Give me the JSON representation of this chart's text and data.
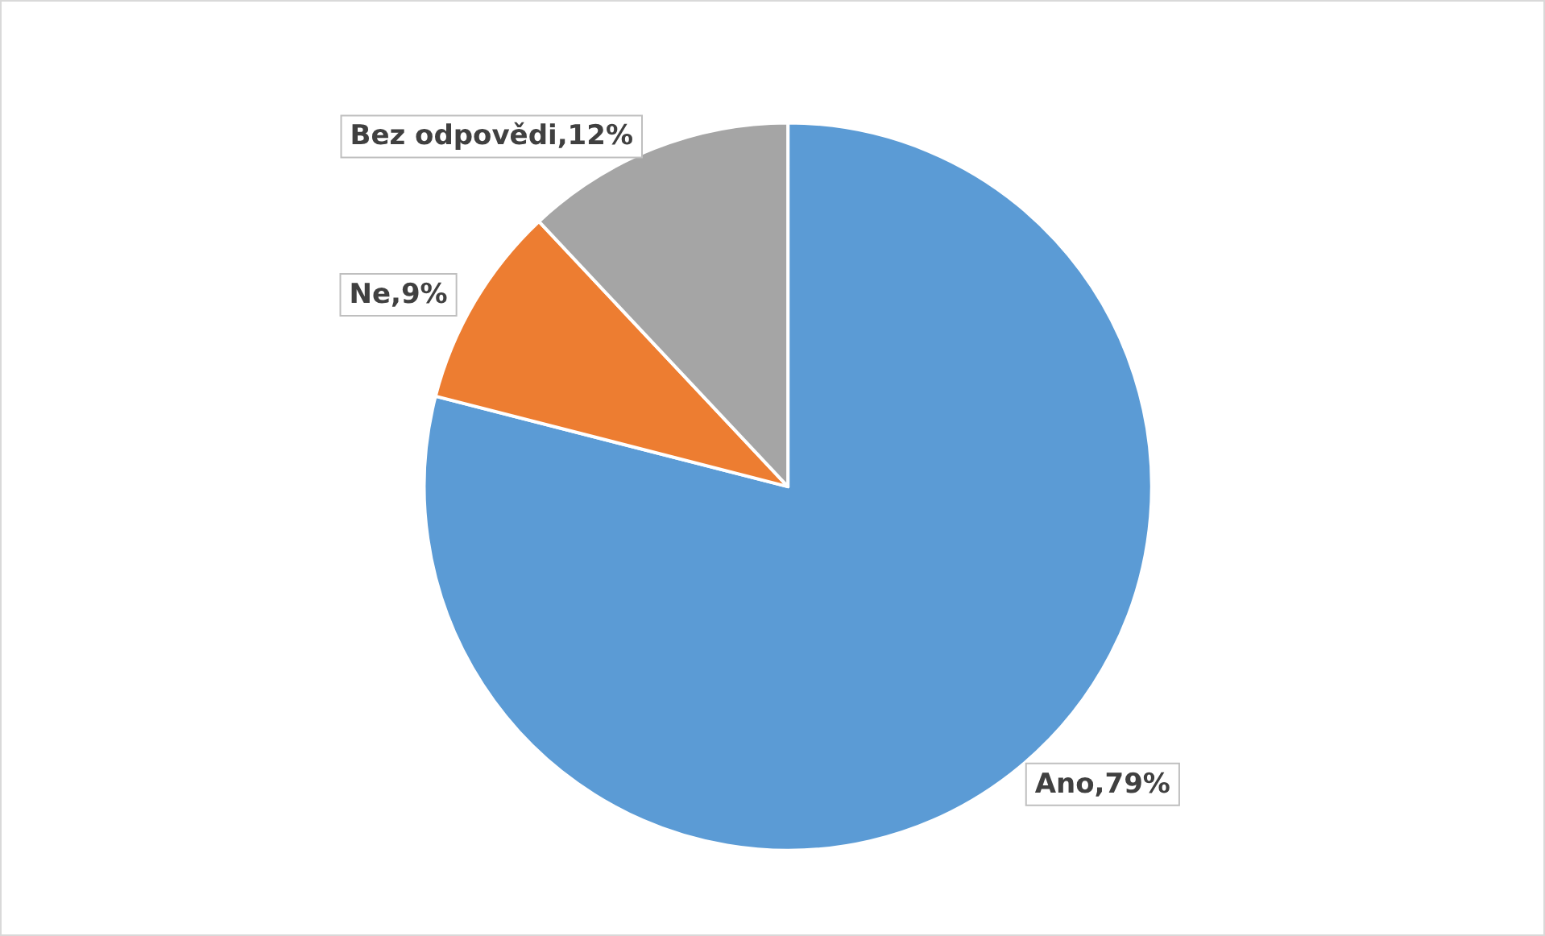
{
  "chart_data": {
    "type": "pie",
    "categories": [
      "Ano",
      "Ne",
      "Bez odpovědi"
    ],
    "values": [
      79,
      9,
      12
    ],
    "value_labels": [
      "79%",
      "9%",
      "12%"
    ],
    "colors": [
      "#5b9bd5",
      "#ed7d31",
      "#a5a5a5"
    ],
    "legend": false
  }
}
